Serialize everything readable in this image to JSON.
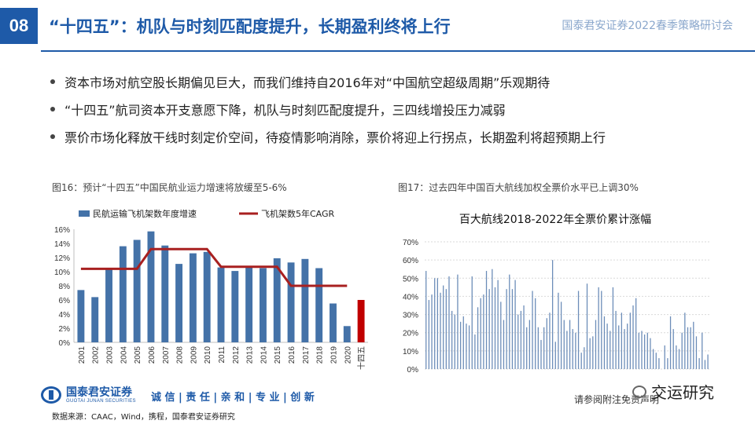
{
  "header": {
    "slide_number": "08",
    "title": "“十四五”：机队与时刻匹配度提升，长期盈利终将上行",
    "org": "国泰君安证券2022春季策略研讨会"
  },
  "bullets": [
    "资本市场对航空股长期偏见巨大，而我们维持自2016年对“中国航空超级周期”乐观期待",
    " “十四五”航司资本开支意愿下降，机队与时刻匹配度提升，三四线增投压力减弱",
    "票价市场化释放干线时刻定价空间，待疫情影响消除，票价将迎上行拐点，长期盈利将超预期上行"
  ],
  "chart_data": [
    {
      "type": "bar",
      "title": "图16：预计“十四五”中国民航业运力增速将放缓至5-6%",
      "legend": [
        "民航运输飞机架数年度增速",
        "飞机架数5年CAGR"
      ],
      "legend_position": "top",
      "categories": [
        "2001",
        "2002",
        "2003",
        "2004",
        "2005",
        "2006",
        "2007",
        "2008",
        "2009",
        "2010",
        "2011",
        "2012",
        "2013",
        "2014",
        "2015",
        "2016",
        "2017",
        "2018",
        "2019",
        "2020",
        "十四五"
      ],
      "series": [
        {
          "name": "民航运输飞机架数年度增速",
          "type": "bar",
          "values": [
            7.4,
            6.4,
            10.4,
            13.6,
            14.5,
            15.7,
            13.7,
            11.1,
            12.6,
            12.8,
            10.6,
            10.1,
            10.7,
            10.5,
            11.9,
            11.3,
            11.8,
            10.5,
            5.5,
            2.3,
            6.0
          ],
          "highlight_last": true
        },
        {
          "name": "飞机架数5年CAGR",
          "type": "line",
          "values": [
            10.4,
            10.4,
            10.4,
            10.4,
            10.4,
            13.2,
            13.2,
            13.2,
            13.2,
            13.2,
            10.7,
            10.7,
            10.7,
            10.7,
            10.7,
            8.0,
            8.0,
            8.0,
            8.0,
            8.0,
            null
          ]
        }
      ],
      "yticks": [
        "0%",
        "2%",
        "4%",
        "6%",
        "8%",
        "10%",
        "12%",
        "14%",
        "16%"
      ],
      "ylim": [
        0,
        16
      ],
      "grid": false,
      "colors": {
        "bar": "#4472a8",
        "bar_highlight": "#c00000",
        "line": "#a82020"
      }
    },
    {
      "type": "bar",
      "title": "图17：过去四年中国百大航线加权全票价水平已上调30%",
      "chart_title": "百大航线2018-2022年全票价累计涨幅",
      "values": [
        54,
        38,
        41,
        50,
        50,
        42,
        46,
        44,
        51,
        32,
        30,
        52,
        26,
        29,
        25,
        24,
        51,
        19,
        34,
        39,
        41,
        54,
        44,
        55,
        45,
        49,
        37,
        27,
        44,
        52,
        44,
        49,
        30,
        32,
        35,
        23,
        27,
        43,
        39,
        23,
        16,
        23,
        28,
        31,
        60,
        15,
        42,
        37,
        27,
        21,
        27,
        22,
        20,
        43,
        9,
        12,
        47,
        17,
        18,
        27,
        45,
        43,
        29,
        25,
        21,
        45,
        32,
        24,
        31,
        22,
        25,
        31,
        35,
        39,
        20,
        21,
        19,
        20,
        17,
        11,
        9,
        6,
        0,
        13,
        6,
        29,
        22,
        13,
        11,
        20,
        31,
        23,
        23,
        26,
        18,
        6,
        20,
        5,
        8
      ],
      "yticks": [
        "0%",
        "10%",
        "20%",
        "30%",
        "40%",
        "50%",
        "60%",
        "70%"
      ],
      "ylim": [
        0,
        70
      ],
      "grid": true,
      "colors": {
        "bar": "#6b8cb8",
        "grid": "#d9d9d9"
      }
    }
  ],
  "footer": {
    "logo_cn": "国泰君安证券",
    "logo_en": "GUOTAI JUNAN SECURITIES",
    "slogan": "诚 信 | 责 任 | 亲 和 | 专 业 | 创 新",
    "source": "数据来源：CAAC，Wind，携程，国泰君安证券研究",
    "disclaimer": "请参阅附注免责声明",
    "watermark": "交运研究"
  }
}
